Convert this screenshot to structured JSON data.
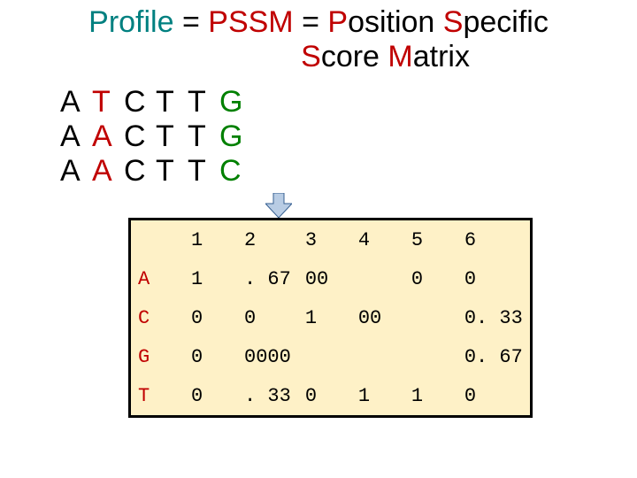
{
  "title": {
    "parts": [
      {
        "text": "Profile",
        "color": "#008080"
      },
      {
        "text": " = ",
        "color": "#000000"
      },
      {
        "text": "PSSM",
        "color": "#c00000"
      },
      {
        "text": " = ",
        "color": "#000000"
      },
      {
        "text": "P",
        "color": "#c00000"
      },
      {
        "text": "osition ",
        "color": "#000000"
      },
      {
        "text": "S",
        "color": "#c00000"
      },
      {
        "text": "pecific\n                ",
        "color": "#000000"
      },
      {
        "text": "S",
        "color": "#c00000"
      },
      {
        "text": "core ",
        "color": "#000000"
      },
      {
        "text": "M",
        "color": "#c00000"
      },
      {
        "text": "atrix",
        "color": "#000000"
      }
    ],
    "fontsize": 34
  },
  "sequences": {
    "rows": [
      [
        {
          "char": "A",
          "color": "#000000"
        },
        {
          "char": "T",
          "color": "#c00000"
        },
        {
          "char": "C",
          "color": "#000000"
        },
        {
          "char": "T",
          "color": "#000000"
        },
        {
          "char": "T",
          "color": "#000000"
        },
        {
          "char": "G",
          "color": "#008000"
        }
      ],
      [
        {
          "char": "A",
          "color": "#000000"
        },
        {
          "char": "A",
          "color": "#c00000"
        },
        {
          "char": "C",
          "color": "#000000"
        },
        {
          "char": "T",
          "color": "#000000"
        },
        {
          "char": "T",
          "color": "#000000"
        },
        {
          "char": "G",
          "color": "#008000"
        }
      ],
      [
        {
          "char": "A",
          "color": "#000000"
        },
        {
          "char": "A",
          "color": "#c00000"
        },
        {
          "char": "C",
          "color": "#000000"
        },
        {
          "char": "T",
          "color": "#000000"
        },
        {
          "char": "T",
          "color": "#000000"
        },
        {
          "char": "C",
          "color": "#008000"
        }
      ]
    ],
    "fontsize": 34
  },
  "arrow": {
    "fill": "#b8cce4",
    "stroke": "#365f91"
  },
  "matrix": {
    "background": "#fef1c7",
    "border_color": "#000000",
    "font": "Courier New",
    "fontsize": 22,
    "header_row": [
      "",
      "1",
      "2",
      "3",
      "4",
      "5",
      "6"
    ],
    "rows": [
      {
        "label": "A",
        "cells": [
          "1",
          ". 67",
          "00",
          "",
          "0",
          "0"
        ]
      },
      {
        "label": "C",
        "cells": [
          "0",
          "0",
          "1",
          "00",
          "",
          "0. 33"
        ]
      },
      {
        "label": "G",
        "cells": [
          "0",
          "0000",
          "",
          "",
          "",
          "0. 67"
        ]
      },
      {
        "label": "T",
        "cells": [
          "0",
          ". 33",
          "0",
          "1",
          "1",
          "0"
        ]
      }
    ],
    "row_label_color": "#c00000"
  }
}
